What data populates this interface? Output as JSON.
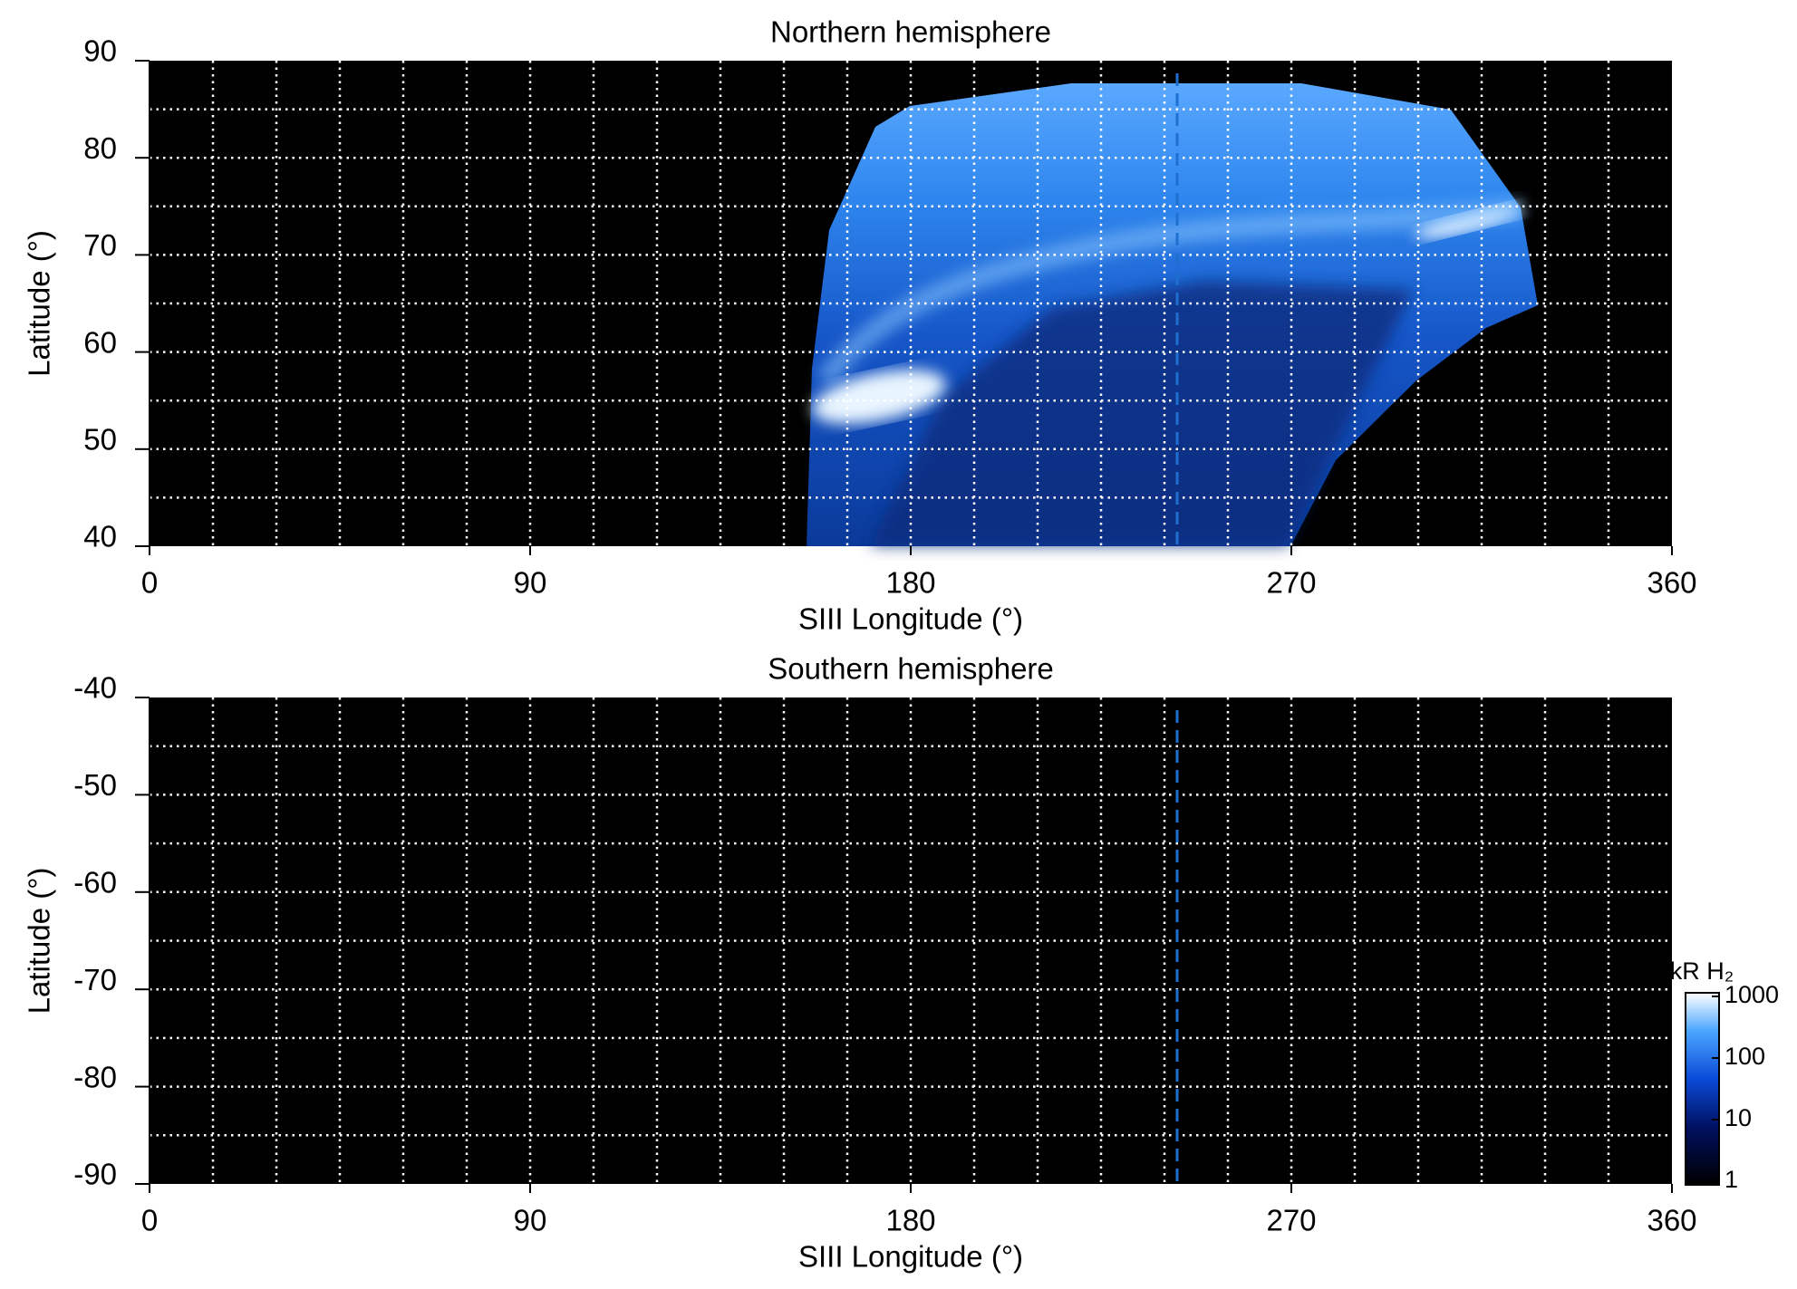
{
  "chart_data": [
    {
      "type": "heatmap",
      "title": "Northern hemisphere",
      "xlabel": "SIII Longitude (°)",
      "ylabel": "Latitude (°)",
      "xlim": [
        0,
        360
      ],
      "xticks": [
        0,
        90,
        180,
        270,
        360
      ],
      "ylim": [
        40,
        90
      ],
      "yticks": [
        40,
        50,
        60,
        70,
        80,
        90
      ],
      "xgrid": [
        15,
        30,
        45,
        60,
        75,
        90,
        105,
        120,
        135,
        150,
        165,
        180,
        195,
        210,
        225,
        240,
        255,
        270,
        285,
        300,
        315,
        330,
        345
      ],
      "ygrid": [
        45,
        50,
        55,
        60,
        65,
        70,
        75,
        80,
        85
      ],
      "grid": true,
      "marker_longitude": 243,
      "marker_color": "#1f6fd0"
    },
    {
      "type": "heatmap",
      "title": "Southern hemisphere",
      "xlabel": "SIII Longitude (°)",
      "ylabel": "Latitude (°)",
      "xlim": [
        0,
        360
      ],
      "xticks": [
        0,
        90,
        180,
        270,
        360
      ],
      "ylim": [
        -90,
        -40
      ],
      "yticks": [
        -40,
        -50,
        -60,
        -70,
        -80,
        -90
      ],
      "xgrid": [
        15,
        30,
        45,
        60,
        75,
        90,
        105,
        120,
        135,
        150,
        165,
        180,
        195,
        210,
        225,
        240,
        255,
        270,
        285,
        300,
        315,
        330,
        345
      ],
      "ygrid": [
        -85,
        -80,
        -75,
        -70,
        -65,
        -60,
        -55,
        -50,
        -45
      ],
      "grid": true,
      "marker_longitude": 243,
      "marker_color": "#1f6fd0",
      "colorbar": {
        "label": "kR H₂",
        "log": true,
        "lim": [
          1,
          1000
        ],
        "ticks": [
          1,
          10,
          100,
          1000
        ]
      }
    }
  ]
}
